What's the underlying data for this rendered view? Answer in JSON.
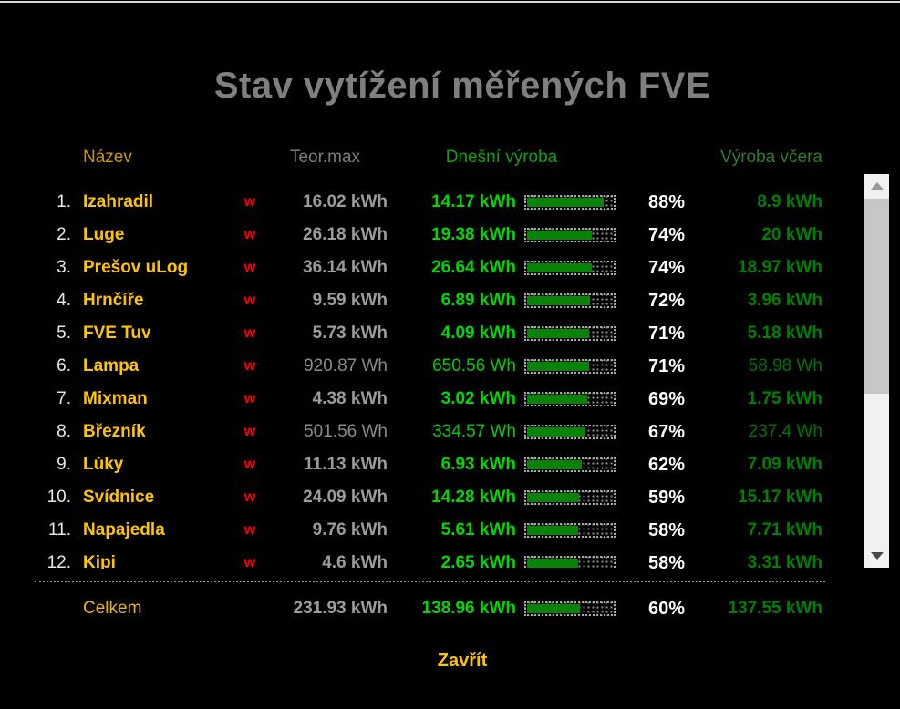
{
  "window": {
    "title": "Stav vytížení měřených FVE",
    "close_label": "Zavřít"
  },
  "table": {
    "headers": {
      "name": "Název",
      "teor_max": "Teor.max",
      "today": "Dnešní výroba",
      "yesterday": "Výroba včera"
    },
    "rows": [
      {
        "num": "1.",
        "name": "Izahradil",
        "w": "w",
        "teor_max": "16.02 kWh",
        "today": "14.17 kWh",
        "percent": 88,
        "percent_label": "88%",
        "yesterday": "8.9 kWh",
        "sub_kwh": false
      },
      {
        "num": "2.",
        "name": "Luge",
        "w": "w",
        "teor_max": "26.18 kWh",
        "today": "19.38 kWh",
        "percent": 74,
        "percent_label": "74%",
        "yesterday": "20 kWh",
        "sub_kwh": false
      },
      {
        "num": "3.",
        "name": "Prešov uLog",
        "w": "w",
        "teor_max": "36.14 kWh",
        "today": "26.64 kWh",
        "percent": 74,
        "percent_label": "74%",
        "yesterday": "18.97 kWh",
        "sub_kwh": false
      },
      {
        "num": "4.",
        "name": "Hrnčíře",
        "w": "w",
        "teor_max": "9.59 kWh",
        "today": "6.89 kWh",
        "percent": 72,
        "percent_label": "72%",
        "yesterday": "3.96 kWh",
        "sub_kwh": false
      },
      {
        "num": "5.",
        "name": "FVE Tuv",
        "w": "w",
        "teor_max": "5.73 kWh",
        "today": "4.09 kWh",
        "percent": 71,
        "percent_label": "71%",
        "yesterday": "5.18 kWh",
        "sub_kwh": false
      },
      {
        "num": "6.",
        "name": "Lampa",
        "w": "w",
        "teor_max": "920.87 Wh",
        "today": "650.56 Wh",
        "percent": 71,
        "percent_label": "71%",
        "yesterday": "58.98 Wh",
        "sub_kwh": true
      },
      {
        "num": "7.",
        "name": "Mixman",
        "w": "w",
        "teor_max": "4.38 kWh",
        "today": "3.02 kWh",
        "percent": 69,
        "percent_label": "69%",
        "yesterday": "1.75 kWh",
        "sub_kwh": false
      },
      {
        "num": "8.",
        "name": "Březník",
        "w": "w",
        "teor_max": "501.56 Wh",
        "today": "334.57 Wh",
        "percent": 67,
        "percent_label": "67%",
        "yesterday": "237.4 Wh",
        "sub_kwh": true
      },
      {
        "num": "9.",
        "name": "Lúky",
        "w": "w",
        "teor_max": "11.13 kWh",
        "today": "6.93 kWh",
        "percent": 62,
        "percent_label": "62%",
        "yesterday": "7.09 kWh",
        "sub_kwh": false
      },
      {
        "num": "10.",
        "name": "Svídnice",
        "w": "w",
        "teor_max": "24.09 kWh",
        "today": "14.28 kWh",
        "percent": 59,
        "percent_label": "59%",
        "yesterday": "15.17 kWh",
        "sub_kwh": false
      },
      {
        "num": "11.",
        "name": "Napajedla",
        "w": "w",
        "teor_max": "9.76 kWh",
        "today": "5.61 kWh",
        "percent": 58,
        "percent_label": "58%",
        "yesterday": "7.71 kWh",
        "sub_kwh": false
      },
      {
        "num": "12.",
        "name": "Kipi",
        "w": "w",
        "teor_max": "4.6 kWh",
        "today": "2.65 kWh",
        "percent": 58,
        "percent_label": "58%",
        "yesterday": "3.31 kWh",
        "sub_kwh": false
      }
    ],
    "total": {
      "label": "Celkem",
      "teor_max": "231.93 kWh",
      "today": "138.96 kWh",
      "percent": 60,
      "percent_label": "60%",
      "yesterday": "137.55 kWh"
    }
  },
  "colors": {
    "title": "#7f7f7f",
    "hdr-name": "#c49613",
    "hdr-teor": "#7d7d7d",
    "hdr-today": "#10a010",
    "hdr-yest": "#2e7d2e",
    "name": "#ffc400",
    "w-marker": "#ff0000",
    "teor": "#9c9c9c",
    "today": "#00d800",
    "yest": "#008000",
    "bar-fill": "#088308",
    "total-label": "#eab21b",
    "close": "#ffc400"
  }
}
